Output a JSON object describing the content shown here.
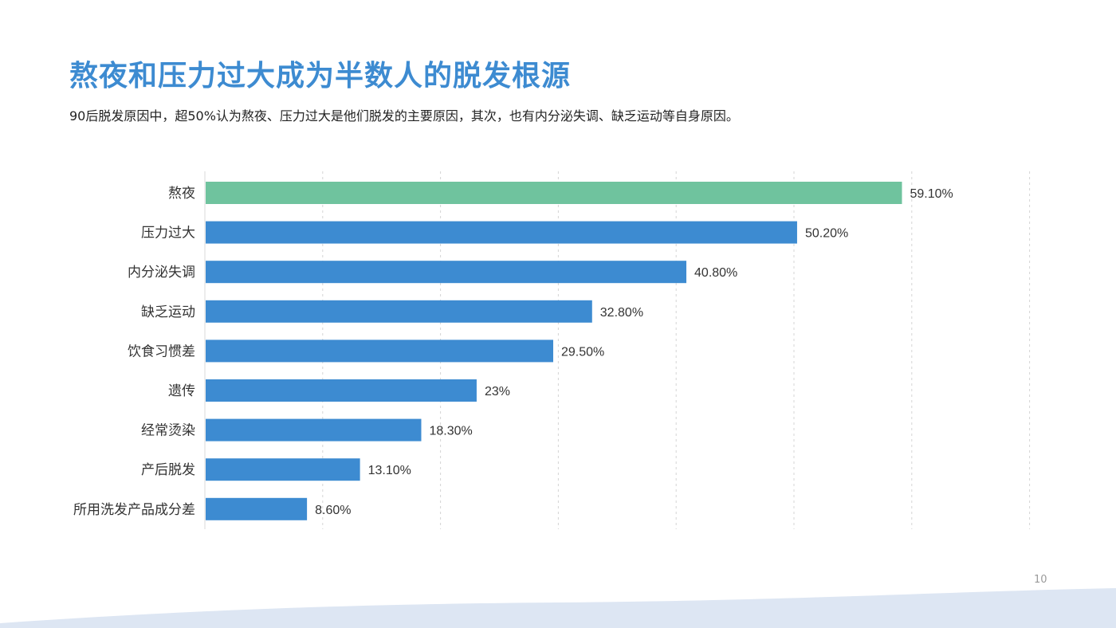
{
  "page": {
    "title": "熬夜和压力过大成为半数人的脱发根源",
    "subtitle": "90后脱发原因中，超50%认为熬夜、压力过大是他们脱发的主要原因，其次，也有内分泌失调、缺乏运动等自身原因。",
    "page_number": "10"
  },
  "chart_data": {
    "type": "bar",
    "orientation": "horizontal",
    "categories": [
      "熬夜",
      "压力过大",
      "内分泌失调",
      "缺乏运动",
      "饮食习惯差",
      "遗传",
      "经常烫染",
      "产后脱发",
      "所用洗发产品成分差"
    ],
    "values": [
      59.1,
      50.2,
      40.8,
      32.8,
      29.5,
      23,
      18.3,
      13.1,
      8.6
    ],
    "data_labels": [
      "59.10%",
      "50.20%",
      "40.80%",
      "32.80%",
      "29.50%",
      "23%",
      "18.30%",
      "13.10%",
      "8.60%"
    ],
    "xlim": [
      0,
      70
    ],
    "grid": true,
    "colors": {
      "highlight": "#6fc39e",
      "default": "#3d8bd1"
    }
  }
}
